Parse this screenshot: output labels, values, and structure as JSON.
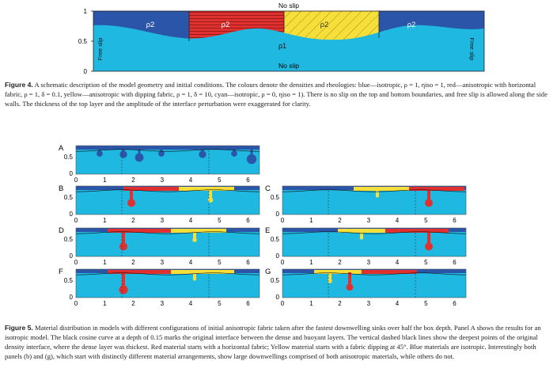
{
  "figure4": {
    "schematic": {
      "top_label": "No slip",
      "bottom_label": "No slip",
      "left_wall_label": "Free slip",
      "right_wall_label": "Free slip",
      "y_ticks": [
        "1",
        "0.5",
        "0"
      ],
      "layer_labels": [
        "ρ2",
        "ρ2",
        "ρ2",
        "ρ2"
      ],
      "bottom_layer_label": "ρ1",
      "colors": {
        "blue": "#2a55a8",
        "red": "#e03030",
        "yellow": "#f6df3a",
        "cyan": "#1eb8e0"
      }
    },
    "caption_label": "Figure 4.",
    "caption_text": "A schematic description of the model geometry and initial conditions. The colours denote the densities and rheologies: blue—isotropic, ρ = 1, ηiso = 1, red—anisotropic with horizontal fabric, ρ = 1, δ = 0.1, yellow—anisotropic with dipping fabric, ρ = 1, δ = 10, cyan—isotropic, ρ = 0, ηiso = 1). There is no slip on the top and bottom boundaries, and free slip is allowed along the side walls. The thickness of the top layer and the amplitude of the interface perturbation were exaggerated for clarity."
  },
  "figure5": {
    "panels": [
      {
        "letter": "A"
      },
      {
        "letter": "B"
      },
      {
        "letter": "C"
      },
      {
        "letter": "D"
      },
      {
        "letter": "E"
      },
      {
        "letter": "F"
      },
      {
        "letter": "G"
      }
    ],
    "y_ticks": [
      "0.5",
      "0"
    ],
    "x_ticks": [
      "0",
      "1",
      "2",
      "3",
      "4",
      "5",
      "6"
    ],
    "caption_label": "Figure 5.",
    "caption_text": "Material distribution in models with different configurations of initial anisotropic fabric taken after the fastest downwelling sinks over half the box depth. Panel A shows the results for an isotropic model. The black cosine curve at a depth of 0.15 marks the original interface between the dense and buoyant layers. The vertical dashed black lines show the deepest points of the original density interface, where the dense layer was thickest. Red material starts with a horizontal fabric; Yellow material starts with a fabric dipping at 45°. Blue materials are isotropic. Interestingly both panels (b) and (g), which start with distinctly different material arrangements, show large downwellings comprised of both anisotropic materials, while others do not."
  }
}
